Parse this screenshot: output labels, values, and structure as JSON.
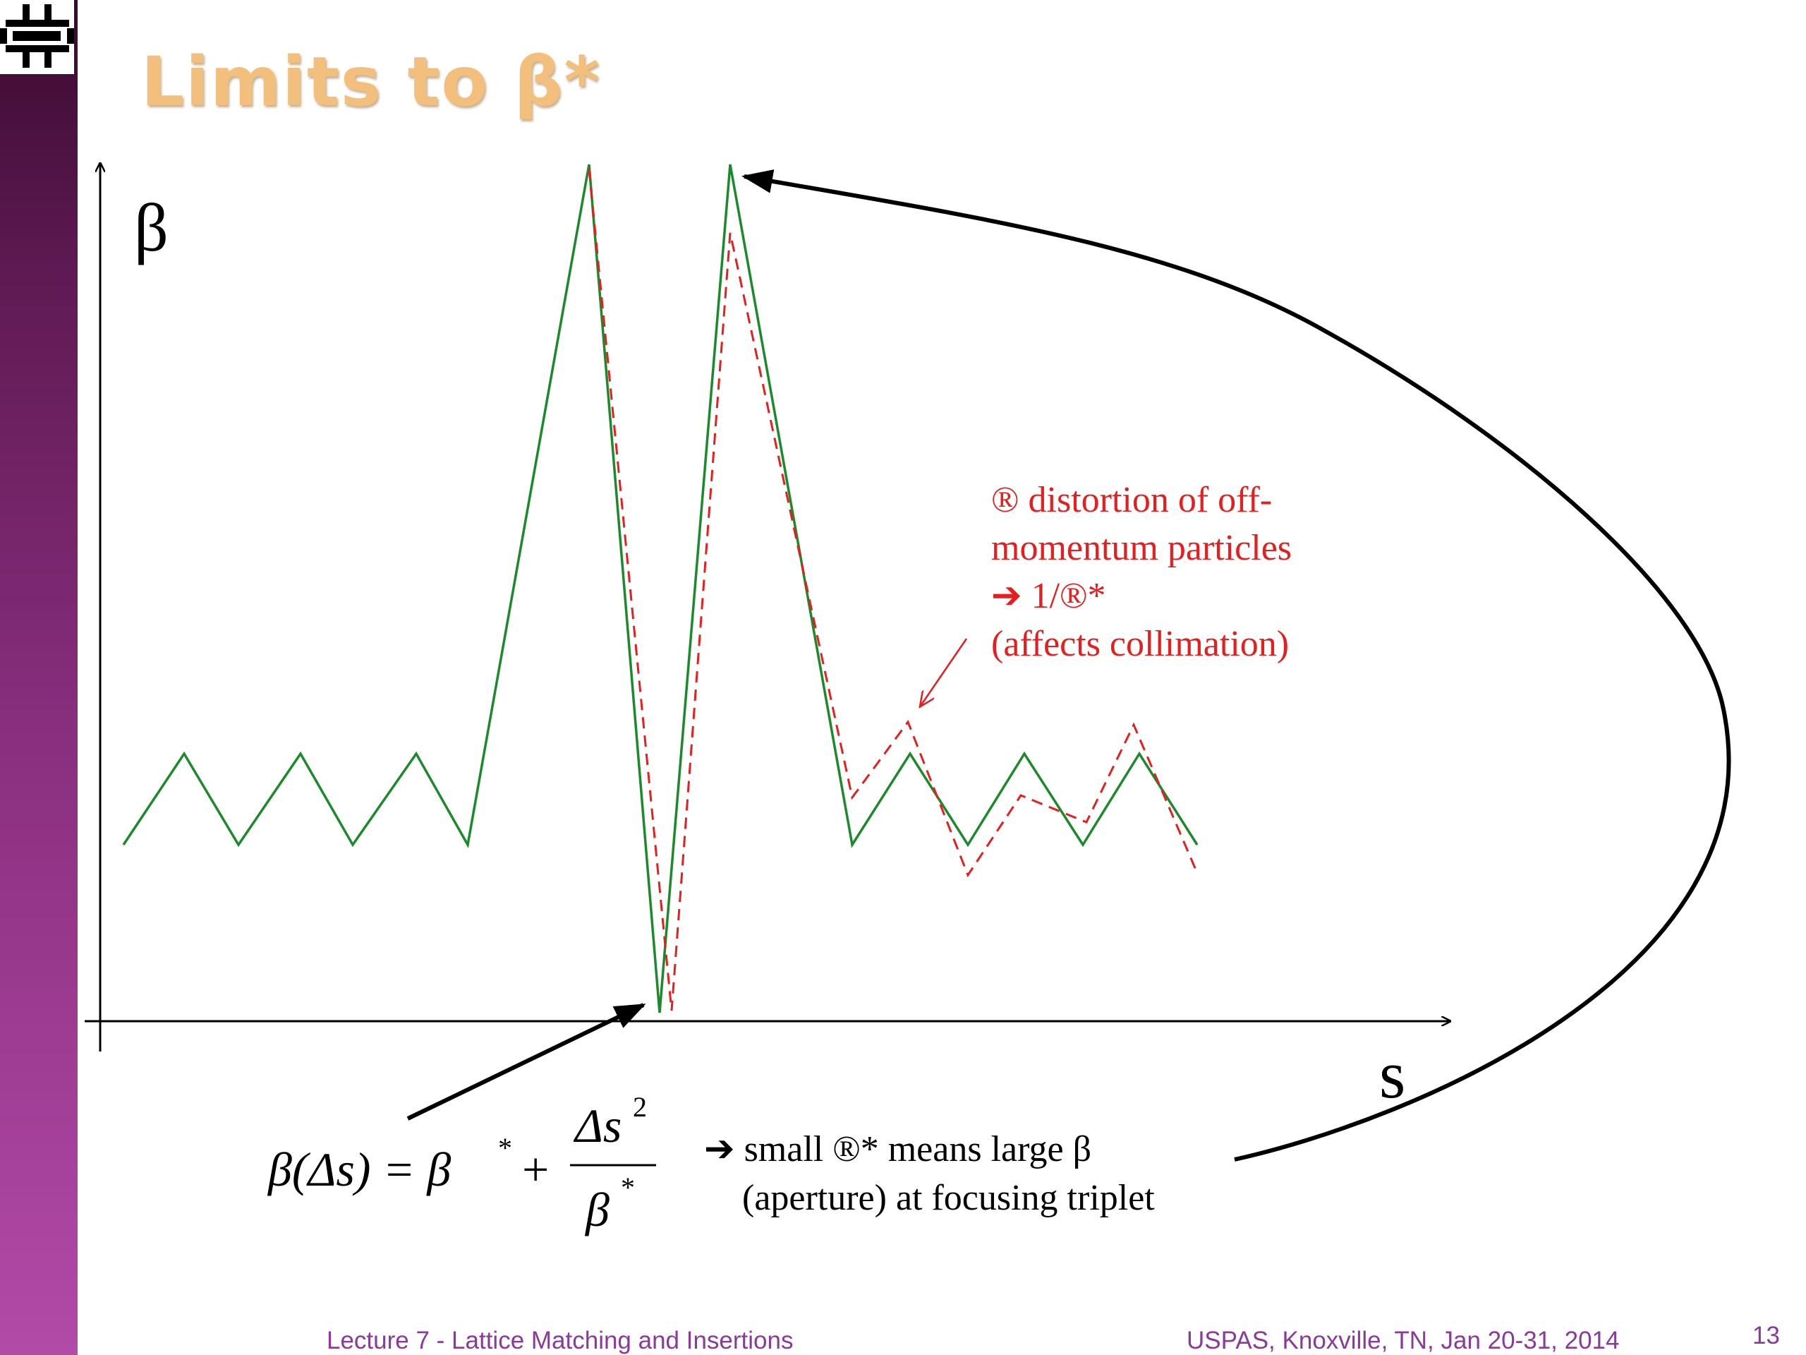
{
  "slide": {
    "title": "Limits to β*",
    "footer_left": "Lecture 7 - Lattice Matching and Insertions",
    "footer_right": "USPAS, Knoxville, TN, Jan 20-31, 2014",
    "page_number": "13"
  },
  "diagram": {
    "y_axis_label": "β",
    "x_axis_label": "s",
    "red_note": [
      "® distortion of off-",
      "momentum particles",
      "➔ 1/®*",
      "(affects collimation)"
    ],
    "formula": {
      "lhs": "β(Δs) = β",
      "star": "*",
      "plus": "+",
      "numerator": "Δs",
      "numerator_exp": "2",
      "denominator": "β",
      "denominator_star": "*"
    },
    "bottom_note": [
      "➔ small ®* means large β",
      "(aperture) at focusing triplet"
    ],
    "colors": {
      "nominal_beta_line": "#1a8a2a",
      "off_momentum_line": "#e61e1e",
      "axes": "#000000",
      "title": "#f2c07c",
      "sidebar": "#8a2f7f",
      "footer": "#8a3a9a"
    }
  }
}
